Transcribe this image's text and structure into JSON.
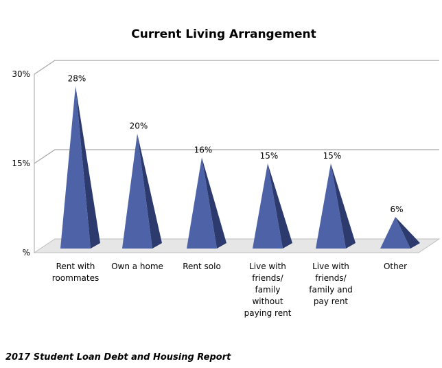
{
  "chart_data": {
    "type": "bar",
    "title": "Current Living Arrangement",
    "categories": [
      [
        "Rent with",
        "roommates"
      ],
      [
        "Own a home"
      ],
      [
        "Rent solo"
      ],
      [
        "Live with",
        "friends/",
        "family",
        "without",
        "paying rent"
      ],
      [
        "Live with",
        "friends/",
        "family and",
        "pay rent"
      ],
      [
        "Other"
      ]
    ],
    "values": [
      28,
      20,
      16,
      15,
      15,
      6
    ],
    "data_labels": [
      "28%",
      "20%",
      "16%",
      "15%",
      "15%",
      "6%"
    ],
    "y_ticks": [
      {
        "value": 0,
        "label": "%"
      },
      {
        "value": 15,
        "label": "15%"
      },
      {
        "value": 30,
        "label": "30%"
      }
    ],
    "ylim": [
      0,
      30
    ],
    "grid": true,
    "legend": "none",
    "bar_shape": "3d-pyramid",
    "colors": {
      "front": "#4E62A8",
      "side": "#2C3A6E",
      "floor": "#E6E6E6",
      "grid": "#A6A6A6"
    }
  },
  "footer": "2017 Student Loan Debt and Housing Report"
}
